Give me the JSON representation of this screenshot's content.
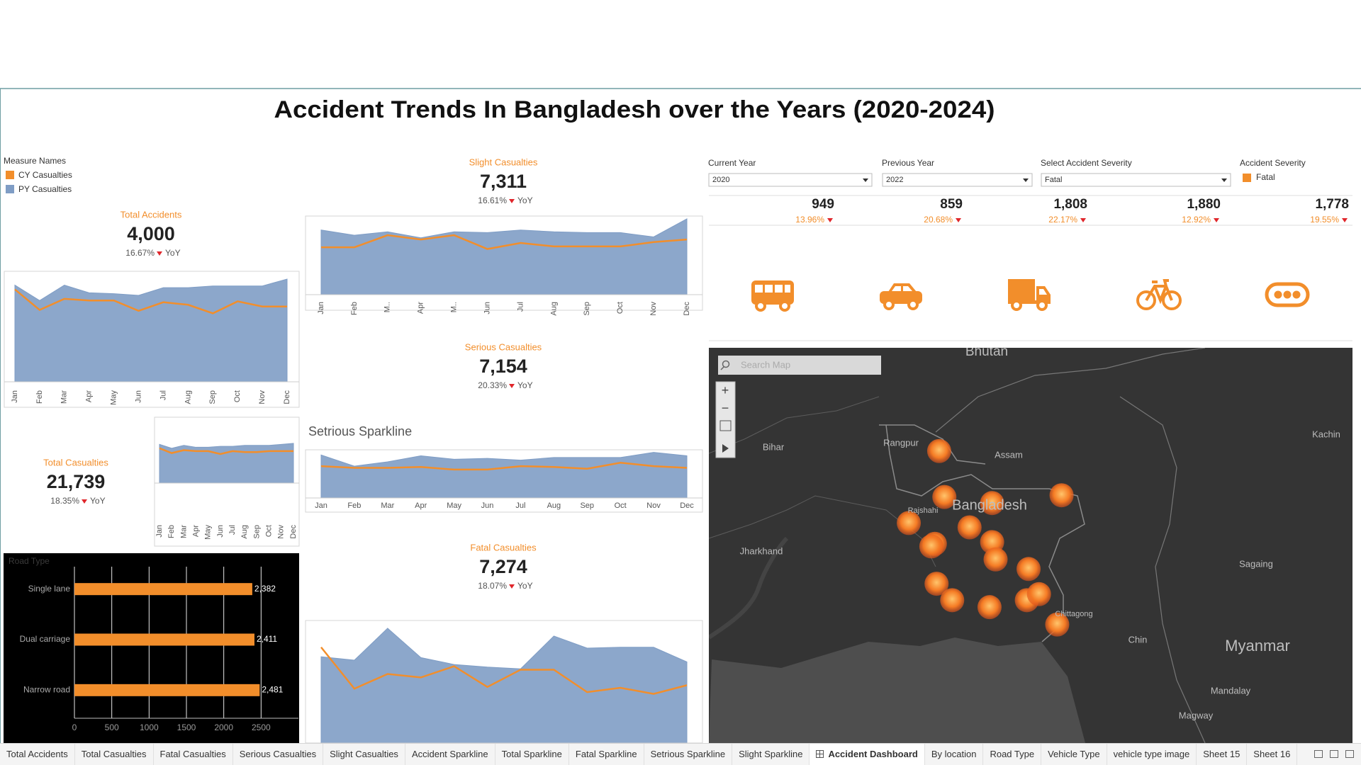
{
  "title": "Accident Trends In Bangladesh over the Years (2020-2024)",
  "legend_title": "Measure Names",
  "kpis": [
    {
      "label": "Total Accidents",
      "value": "4,000",
      "change": "16.67%",
      "period": "YoY"
    },
    {
      "label": "Slight Casualties",
      "value": "7,311",
      "change": "16.61%",
      "period": "YoY"
    },
    {
      "label": "Serious Casualties",
      "value": "7,154",
      "change": "20.33%",
      "period": "YoY"
    },
    {
      "label": "Total Casualties",
      "value": "21,739",
      "change": "18.35%",
      "period": "YoY"
    },
    {
      "label": "Fatal Casualties",
      "value": "7,274",
      "change": "18.07%",
      "period": "YoY"
    }
  ],
  "filters": [
    {
      "label": "Current Year",
      "value": "2020"
    },
    {
      "label": "Previous Year",
      "value": "2022"
    },
    {
      "label": "Select Accident Severity",
      "value": "Fatal"
    }
  ],
  "severity_legend": {
    "title": "Accident Severity",
    "items": [
      {
        "name": "Fatal",
        "color": "#f28e2b"
      }
    ]
  },
  "vehicle_stats": [
    {
      "value": "949",
      "change": "13.96%"
    },
    {
      "value": "859",
      "change": "20.68%"
    },
    {
      "value": "1,808",
      "change": "22.17%"
    },
    {
      "value": "1,880",
      "change": "12.92%"
    },
    {
      "value": "1,778",
      "change": "19.55%"
    }
  ],
  "chart_data": [
    {
      "type": "area",
      "categories": [
        "Jan",
        "Feb",
        "Mar",
        "Apr",
        "May",
        "Jun",
        "Jul",
        "Aug",
        "Sep",
        "Oct",
        "Nov",
        "Dec"
      ],
      "ylim": [
        0,
        380
      ],
      "series": [
        {
          "name": "CY Casualties",
          "color": "#f28e2b",
          "kind": "line",
          "values": [
            324,
            252,
            291,
            285,
            285,
            249,
            279,
            270,
            240,
            282,
            264,
            264
          ]
        },
        {
          "name": "PY Casualties",
          "color": "#7f9dc5",
          "kind": "area",
          "values": [
            339,
            285,
            339,
            312,
            309,
            303,
            330,
            330,
            336,
            336,
            336,
            360
          ]
        }
      ]
    },
    {
      "type": "area",
      "categories": [
        "Jan",
        "Feb",
        "M..",
        "Apr",
        "M..",
        "Jun",
        "Jul",
        "Aug",
        "Sep",
        "Oct",
        "Nov",
        "Dec"
      ],
      "ylim": [
        0,
        730
      ],
      "series": [
        {
          "color": "#f28e2b",
          "kind": "line",
          "values": [
            440,
            440,
            552,
            512,
            552,
            424,
            480,
            448,
            448,
            448,
            488,
            512
          ]
        },
        {
          "color": "#7f9dc5",
          "kind": "area",
          "values": [
            600,
            552,
            584,
            528,
            584,
            576,
            600,
            584,
            576,
            576,
            536,
            704
          ]
        }
      ]
    },
    {
      "type": "area",
      "title": "Setrious Sparkline",
      "categories": [
        "Jan",
        "Feb",
        "Mar",
        "Apr",
        "May",
        "Jun",
        "Jul",
        "Aug",
        "Sep",
        "Oct",
        "Nov",
        "Dec"
      ],
      "ylim": [
        0,
        560
      ],
      "series": [
        {
          "color": "#f28e2b",
          "kind": "line",
          "values": [
            370,
            350,
            350,
            360,
            330,
            330,
            370,
            360,
            340,
            410,
            370,
            350
          ]
        },
        {
          "color": "#7f9dc5",
          "kind": "area",
          "values": [
            500,
            370,
            420,
            490,
            450,
            460,
            440,
            470,
            470,
            470,
            530,
            490
          ]
        }
      ]
    },
    {
      "type": "area",
      "categories": [
        "Jan",
        "Feb",
        "Mar",
        "Apr",
        "May",
        "Jun",
        "Jul",
        "Aug",
        "Sep",
        "Oct",
        "Nov",
        "Dec"
      ],
      "ylim": [
        0,
        300
      ],
      "series": [
        {
          "color": "#f28e2b",
          "kind": "line",
          "values": [
            180,
            155,
            170,
            165,
            165,
            150,
            165,
            160,
            160,
            165,
            165,
            165
          ]
        },
        {
          "color": "#7f9dc5",
          "kind": "area",
          "values": [
            200,
            180,
            195,
            185,
            185,
            190,
            190,
            195,
            195,
            195,
            200,
            205
          ]
        }
      ]
    },
    {
      "type": "area",
      "categories": [
        null,
        null,
        null,
        null,
        null,
        null,
        null,
        null,
        null,
        null,
        null,
        null
      ],
      "ylim": [
        0,
        2840
      ],
      "series": [
        {
          "color": "#f28e2b",
          "kind": "line",
          "values": [
            2220,
            1260,
            1600,
            1520,
            1780,
            1300,
            1700,
            1700,
            1180,
            1280,
            1140,
            1340
          ]
        },
        {
          "color": "#7f9dc5",
          "kind": "area",
          "values": [
            2000,
            1920,
            2660,
            1980,
            1820,
            1760,
            1720,
            2480,
            2200,
            2220,
            2220,
            1880
          ]
        }
      ]
    },
    {
      "type": "bar",
      "title": "Road Type",
      "categories": [
        "Single lane",
        "Dual carriage",
        "Narrow road"
      ],
      "values": [
        2382,
        2411,
        2481
      ],
      "value_labels": [
        "2,382",
        "2,411",
        "2,481"
      ],
      "color": "#f28e2b",
      "xlim": [
        0,
        3000
      ],
      "xticks": [
        0,
        500,
        1000,
        1500,
        2000,
        2500
      ],
      "grid": true
    }
  ],
  "map": {
    "search_placeholder": "Search Map",
    "labels": [
      "Bhutan",
      "Assam",
      "Rangpur",
      "Bihar",
      "Kachin",
      "Rajshahi",
      "Bangladesh",
      "Jharkhand",
      "Sagaing",
      "Myanmar",
      "Chin",
      "Mandalay",
      "Magway",
      "Chittagong"
    ]
  },
  "tabs": [
    "Total Accidents",
    "Total Casualties",
    "Fatal Casualties",
    "Serious Casualties",
    "Slight Casualties",
    "Accident Sparkline",
    "Total Sparkline",
    "Fatal Sparkline",
    "Setrious Sparkline",
    "Slight Sparkline",
    "Accident Dashboard",
    "By location",
    "Road Type",
    "Vehicle Type",
    "vehicle type image",
    "Sheet 15",
    "Sheet 16"
  ],
  "active_tab": 10
}
